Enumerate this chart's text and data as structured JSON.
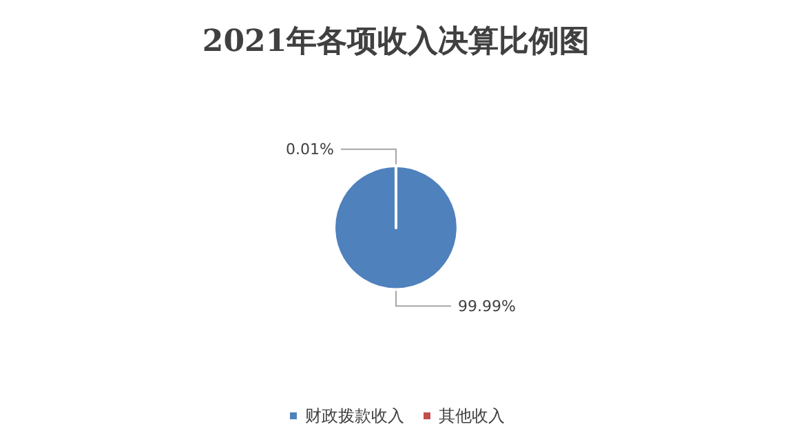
{
  "chart_data": {
    "type": "pie",
    "title": "2021年各项收入决算比例图",
    "categories": [
      "财政拨款收入",
      "其他收入"
    ],
    "values": [
      99.99,
      0.01
    ],
    "colors": [
      "#4f81bd",
      "#c0504d"
    ],
    "value_labels": [
      "99.99%",
      "0.01%"
    ],
    "legend": "bottom"
  }
}
